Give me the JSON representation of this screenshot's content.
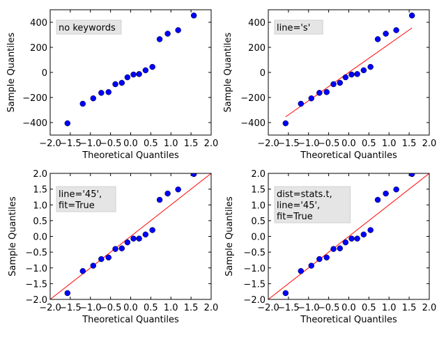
{
  "chart_data": [
    {
      "type": "scatter",
      "annotation": "no keywords",
      "xlabel": "Theoretical Quantiles",
      "ylabel": "Sample Quantiles",
      "xlim": [
        -2,
        2
      ],
      "ylim": [
        -500,
        500
      ],
      "xticks": [
        "−2.0",
        "−1.5",
        "−1.0",
        "−0.5",
        "0.0",
        "0.5",
        "1.0",
        "1.5",
        "2.0"
      ],
      "yticks": [
        "−400",
        "−200",
        "0",
        "200",
        "400"
      ],
      "x": [
        -1.57,
        -1.19,
        -0.93,
        -0.73,
        -0.55,
        -0.38,
        -0.22,
        -0.08,
        0.07,
        0.21,
        0.37,
        0.54,
        0.72,
        0.92,
        1.18,
        1.57
      ],
      "y": [
        -406,
        -250,
        -207,
        -163,
        -157,
        -94,
        -83,
        -39,
        -17,
        -13,
        17,
        44,
        265,
        309,
        337,
        454
      ],
      "line": null
    },
    {
      "type": "scatter",
      "annotation": "line='s'",
      "xlabel": "Theoretical Quantiles",
      "ylabel": "Sample Quantiles",
      "xlim": [
        -2,
        2
      ],
      "ylim": [
        -500,
        500
      ],
      "xticks": [
        "−2.0",
        "−1.5",
        "−1.0",
        "−0.5",
        "0.0",
        "0.5",
        "1.0",
        "1.5",
        "2.0"
      ],
      "yticks": [
        "−400",
        "−200",
        "0",
        "200",
        "400"
      ],
      "x": [
        -1.57,
        -1.19,
        -0.93,
        -0.73,
        -0.55,
        -0.38,
        -0.22,
        -0.08,
        0.07,
        0.21,
        0.37,
        0.54,
        0.72,
        0.92,
        1.18,
        1.57
      ],
      "y": [
        -406,
        -250,
        -207,
        -163,
        -157,
        -94,
        -83,
        -39,
        -17,
        -13,
        17,
        44,
        265,
        309,
        337,
        454
      ],
      "line": [
        [
          -1.57,
          -355
        ],
        [
          1.57,
          355
        ]
      ]
    },
    {
      "type": "scatter",
      "annotation": "line='45',\nfit=True",
      "xlabel": "Theoretical Quantiles",
      "ylabel": "Sample Quantiles",
      "xlim": [
        -2,
        2
      ],
      "ylim": [
        -2,
        2
      ],
      "xticks": [
        "−2.0",
        "−1.5",
        "−1.0",
        "−0.5",
        "0.0",
        "0.5",
        "1.0",
        "1.5",
        "2.0"
      ],
      "yticks": [
        "−2.0",
        "−1.5",
        "−1.0",
        "−0.5",
        "0.0",
        "0.5",
        "1.0",
        "1.5",
        "2.0"
      ],
      "x": [
        -1.57,
        -1.19,
        -0.93,
        -0.73,
        -0.55,
        -0.38,
        -0.22,
        -0.08,
        0.07,
        0.21,
        0.37,
        0.54,
        0.72,
        0.92,
        1.18,
        1.57
      ],
      "y": [
        -1.8,
        -1.1,
        -0.93,
        -0.72,
        -0.67,
        -0.4,
        -0.38,
        -0.19,
        -0.07,
        -0.07,
        0.06,
        0.2,
        1.16,
        1.36,
        1.49,
        1.98
      ],
      "line": [
        [
          -2,
          -2
        ],
        [
          2,
          2
        ]
      ]
    },
    {
      "type": "scatter",
      "annotation": "dist=stats.t,\nline='45',\nfit=True",
      "xlabel": "Theoretical Quantiles",
      "ylabel": "Sample Quantiles",
      "xlim": [
        -2,
        2
      ],
      "ylim": [
        -2,
        2
      ],
      "xticks": [
        "−2.0",
        "−1.5",
        "−1.0",
        "−0.5",
        "0.0",
        "0.5",
        "1.0",
        "1.5",
        "2.0"
      ],
      "yticks": [
        "−2.0",
        "−1.5",
        "−1.0",
        "−0.5",
        "0.0",
        "0.5",
        "1.0",
        "1.5",
        "2.0"
      ],
      "x": [
        -1.57,
        -1.19,
        -0.93,
        -0.73,
        -0.55,
        -0.38,
        -0.22,
        -0.08,
        0.07,
        0.21,
        0.37,
        0.54,
        0.72,
        0.92,
        1.18,
        1.57
      ],
      "y": [
        -1.8,
        -1.1,
        -0.93,
        -0.72,
        -0.67,
        -0.4,
        -0.38,
        -0.19,
        -0.07,
        -0.07,
        0.06,
        0.2,
        1.16,
        1.36,
        1.49,
        1.98
      ],
      "line": [
        [
          -2,
          -2
        ],
        [
          2,
          2
        ]
      ]
    }
  ],
  "colors": {
    "points": "#0000ff",
    "line": "#ff0000",
    "annotation_bg": "#e5e5e5"
  }
}
